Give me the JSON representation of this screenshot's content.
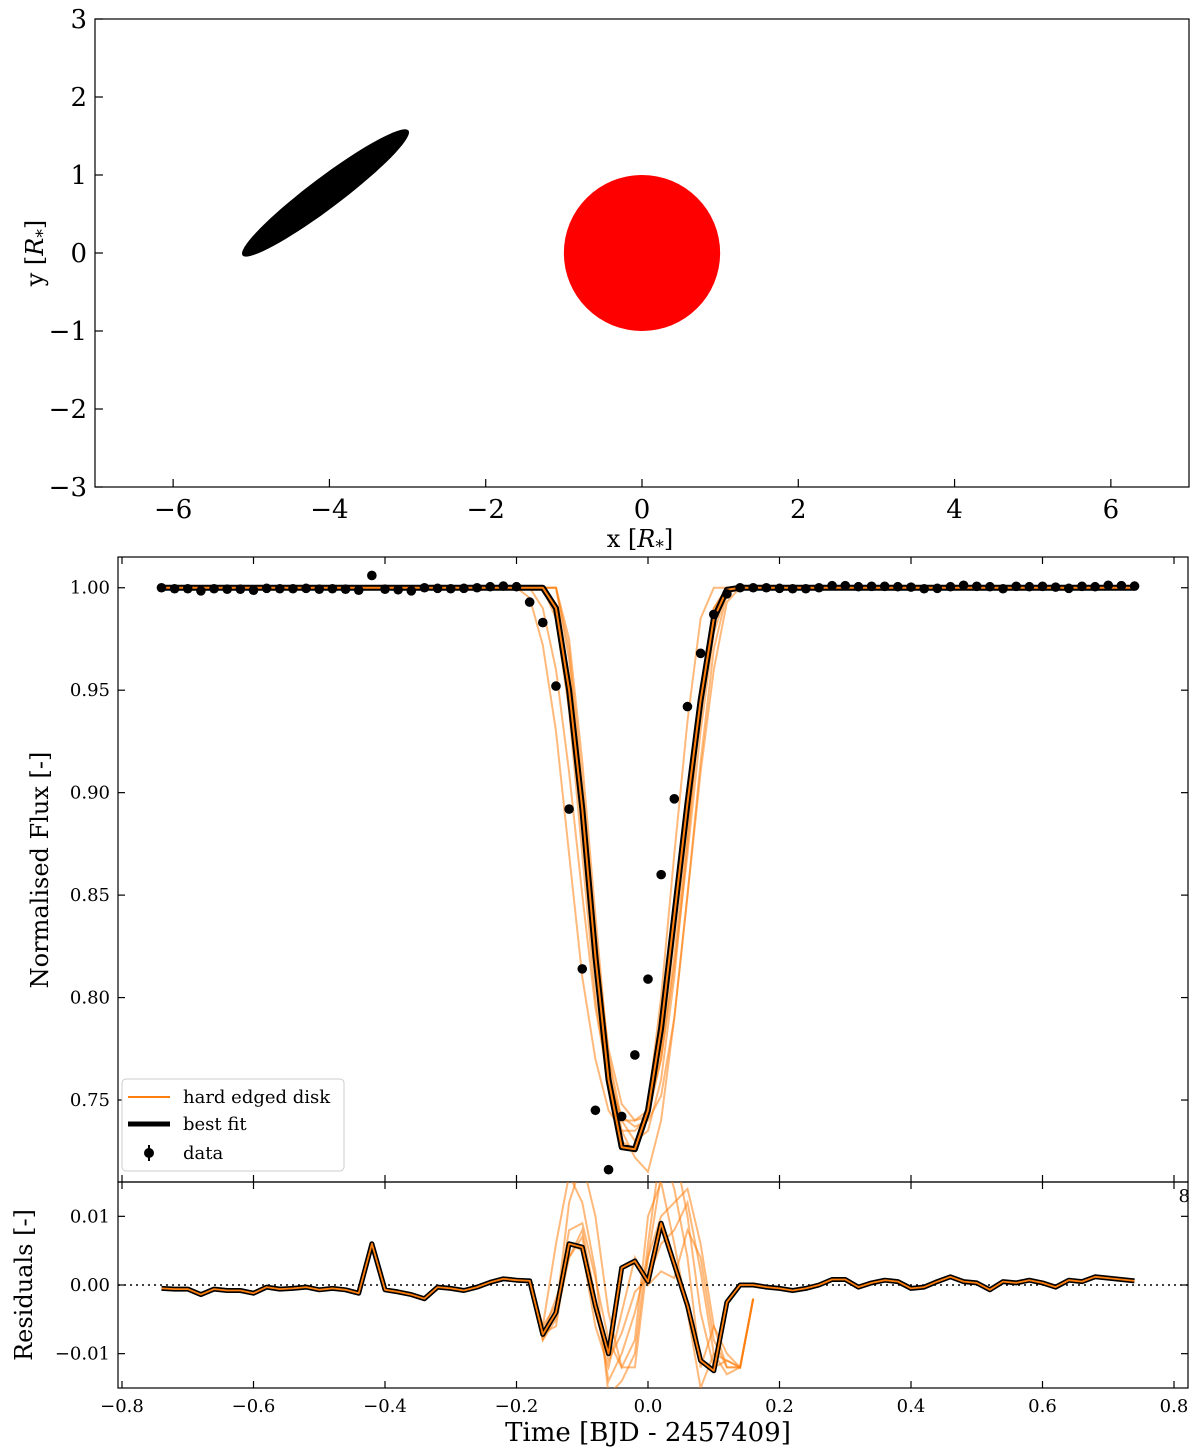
{
  "chart_data": [
    {
      "type": "scatter",
      "panel": "sky-projection",
      "title": "",
      "xlabel_prefix": "x [",
      "xlabel_sym": "R",
      "xlabel_sub": "*",
      "xlabel_suffix": "]",
      "ylabel_prefix": "y [",
      "ylabel_sym": "R",
      "ylabel_sub": "*",
      "ylabel_suffix": "]",
      "xlim": [
        -7,
        7
      ],
      "ylim": [
        -3,
        3
      ],
      "xticks": [
        -6,
        -4,
        -2,
        0,
        2,
        4,
        6
      ],
      "yticks": [
        -3,
        -2,
        -1,
        0,
        1,
        2,
        3
      ],
      "xtick_labels": [
        "−6",
        "−4",
        "−2",
        "0",
        "2",
        "4",
        "6"
      ],
      "ytick_labels": [
        "−3",
        "−2",
        "−1",
        "0",
        "1",
        "2",
        "3"
      ],
      "shapes": [
        {
          "name": "disk",
          "kind": "ellipse",
          "center": [
            -4.05,
            0.77
          ],
          "semi_major": 1.33,
          "semi_minor": 0.2,
          "angle_deg": 37,
          "color": "#000000"
        },
        {
          "name": "star",
          "kind": "circle",
          "center": [
            0,
            0
          ],
          "radius": 1.0,
          "color": "#ff0000"
        }
      ]
    },
    {
      "type": "line",
      "panel": "light-curve",
      "title": "",
      "xlabel": "",
      "ylabel": "Normalised Flux [-]",
      "xlim": [
        -0.8,
        0.85
      ],
      "ylim": [
        0.71,
        1.015
      ],
      "yticks": [
        0.75,
        0.8,
        0.85,
        0.9,
        0.95,
        1.0
      ],
      "ytick_labels": [
        "0.75",
        "0.80",
        "0.85",
        "0.90",
        "0.95",
        "1.00"
      ],
      "stray_label": "8",
      "legend": {
        "placement": "lower-left",
        "entries": [
          {
            "label": "hard edged disk",
            "style": "thin-orange-line",
            "color": "#ff7f0e"
          },
          {
            "label": "best fit",
            "style": "thick-black-line",
            "color": "#000000"
          },
          {
            "label": "data",
            "style": "errorbar-point",
            "color": "#000000"
          }
        ]
      },
      "data_x": [
        -0.74,
        -0.72,
        -0.7,
        -0.68,
        -0.66,
        -0.64,
        -0.62,
        -0.6,
        -0.58,
        -0.56,
        -0.54,
        -0.52,
        -0.5,
        -0.48,
        -0.46,
        -0.44,
        -0.42,
        -0.4,
        -0.38,
        -0.36,
        -0.34,
        -0.32,
        -0.3,
        -0.28,
        -0.26,
        -0.24,
        -0.22,
        -0.2,
        -0.18,
        -0.16,
        -0.14,
        -0.12,
        -0.1,
        -0.08,
        -0.06,
        -0.04,
        -0.02,
        0.0,
        0.02,
        0.04,
        0.06,
        0.08,
        0.1,
        0.12,
        0.14,
        0.16,
        0.18,
        0.2,
        0.22,
        0.24,
        0.26,
        0.28,
        0.3,
        0.32,
        0.34,
        0.36,
        0.38,
        0.4,
        0.42,
        0.44,
        0.46,
        0.48,
        0.5,
        0.52,
        0.54,
        0.56,
        0.58,
        0.6,
        0.62,
        0.64,
        0.66,
        0.68,
        0.7,
        0.72,
        0.74
      ],
      "data_y": [
        1.0,
        0.9995,
        0.9995,
        0.9985,
        0.9995,
        0.9993,
        0.9993,
        0.9988,
        0.9997,
        0.9995,
        0.9995,
        0.9997,
        0.9993,
        0.9995,
        0.9993,
        0.9988,
        1.006,
        0.9993,
        0.999,
        0.9985,
        1.0,
        0.9997,
        0.9995,
        0.9997,
        1.0,
        1.0005,
        1.0008,
        1.0005,
        0.993,
        0.983,
        0.952,
        0.892,
        0.814,
        0.745,
        0.716,
        0.742,
        0.772,
        0.809,
        0.86,
        0.897,
        0.942,
        0.968,
        0.987,
        0.997,
        1.0,
        1.0,
        1.0,
        0.9997,
        0.9995,
        0.9995,
        1.0,
        1.001,
        1.001,
        1.0005,
        1.0007,
        1.0007,
        1.0005,
        1.0003,
        0.9995,
        0.9997,
        1.0005,
        1.0012,
        1.0007,
        1.0005,
        0.9995,
        1.0007,
        1.0005,
        1.0007,
        1.0003,
        0.9997,
        1.0007,
        1.0005,
        1.0012,
        1.001,
        1.0008
      ],
      "best_fit_x": [
        -0.74,
        -0.2,
        -0.18,
        -0.16,
        -0.14,
        -0.12,
        -0.1,
        -0.08,
        -0.06,
        -0.04,
        -0.02,
        0.0,
        0.02,
        0.04,
        0.06,
        0.08,
        0.1,
        0.12,
        0.14,
        0.16,
        0.74
      ],
      "best_fit_y": [
        1.0,
        1.0,
        1.0,
        1.0,
        0.99,
        0.95,
        0.892,
        0.82,
        0.76,
        0.727,
        0.726,
        0.745,
        0.785,
        0.84,
        0.895,
        0.945,
        0.985,
        0.999,
        1.0,
        1.0,
        1.0
      ],
      "sample_curves": [
        {
          "x": [
            -0.74,
            -0.2,
            -0.18,
            -0.16,
            -0.14,
            -0.12,
            -0.1,
            -0.08,
            -0.06,
            -0.04,
            -0.02,
            0.0,
            0.02,
            0.04,
            0.06,
            0.08,
            0.1,
            0.12,
            0.14,
            0.74
          ],
          "y": [
            1.0,
            1.0,
            0.995,
            0.972,
            0.93,
            0.87,
            0.81,
            0.77,
            0.745,
            0.735,
            0.735,
            0.742,
            0.77,
            0.82,
            0.88,
            0.94,
            0.985,
            1.0,
            1.0,
            1.0
          ]
        },
        {
          "x": [
            -0.74,
            -0.18,
            -0.16,
            -0.14,
            -0.12,
            -0.1,
            -0.08,
            -0.06,
            -0.04,
            -0.02,
            0.0,
            0.02,
            0.04,
            0.06,
            0.08,
            0.1,
            0.12,
            0.14,
            0.74
          ],
          "y": [
            1.0,
            1.0,
            0.99,
            0.96,
            0.91,
            0.85,
            0.795,
            0.76,
            0.742,
            0.737,
            0.74,
            0.752,
            0.79,
            0.85,
            0.915,
            0.97,
            0.997,
            1.0,
            1.0
          ]
        },
        {
          "x": [
            -0.74,
            -0.16,
            -0.14,
            -0.12,
            -0.1,
            -0.08,
            -0.06,
            -0.04,
            -0.02,
            0.0,
            0.02,
            0.04,
            0.06,
            0.08,
            0.1,
            0.74
          ],
          "y": [
            1.0,
            1.0,
            0.985,
            0.94,
            0.87,
            0.8,
            0.755,
            0.73,
            0.725,
            0.748,
            0.8,
            0.87,
            0.935,
            0.985,
            1.0,
            1.0
          ]
        },
        {
          "x": [
            -0.74,
            -0.16,
            -0.14,
            -0.12,
            -0.1,
            -0.08,
            -0.06,
            -0.04,
            -0.02,
            0.0,
            0.02,
            0.04,
            0.06,
            0.08,
            0.1,
            0.12,
            0.74
          ],
          "y": [
            1.0,
            1.0,
            0.992,
            0.95,
            0.89,
            0.815,
            0.76,
            0.74,
            0.74,
            0.742,
            0.775,
            0.83,
            0.89,
            0.95,
            0.99,
            1.0,
            1.0
          ]
        },
        {
          "x": [
            -0.74,
            -0.14,
            -0.12,
            -0.1,
            -0.08,
            -0.06,
            -0.04,
            -0.02,
            0.0,
            0.02,
            0.04,
            0.06,
            0.08,
            0.1,
            0.12,
            0.14,
            0.74
          ],
          "y": [
            1.0,
            1.0,
            0.975,
            0.915,
            0.84,
            0.77,
            0.735,
            0.722,
            0.715,
            0.74,
            0.79,
            0.85,
            0.91,
            0.96,
            0.993,
            1.0,
            1.0
          ]
        },
        {
          "x": [
            -0.74,
            -0.14,
            -0.12,
            -0.1,
            -0.08,
            -0.06,
            -0.04,
            -0.02,
            0.0,
            0.02,
            0.04,
            0.06,
            0.08,
            0.1,
            0.12,
            0.14,
            0.74
          ],
          "y": [
            1.0,
            1.0,
            0.965,
            0.9,
            0.825,
            0.775,
            0.748,
            0.74,
            0.745,
            0.77,
            0.815,
            0.87,
            0.93,
            0.978,
            0.998,
            1.0,
            1.0
          ]
        },
        {
          "x": [
            -0.74,
            -0.14,
            -0.12,
            -0.1,
            -0.08,
            -0.06,
            -0.04,
            -0.02,
            0.0,
            0.02,
            0.04,
            0.06,
            0.08,
            0.1,
            0.12,
            0.74
          ],
          "y": [
            1.0,
            1.0,
            0.97,
            0.905,
            0.832,
            0.772,
            0.74,
            0.73,
            0.735,
            0.76,
            0.81,
            0.875,
            0.945,
            0.99,
            1.0,
            1.0
          ]
        }
      ]
    },
    {
      "type": "line",
      "panel": "residuals",
      "title": "",
      "xlabel": "Time [BJD - 2457409]",
      "ylabel": "Residuals [-]",
      "xlim": [
        -0.82,
        0.82
      ],
      "ylim": [
        -0.015,
        0.015
      ],
      "xticks": [
        -0.8,
        -0.6,
        -0.4,
        -0.2,
        0.0,
        0.2,
        0.4,
        0.6,
        0.8
      ],
      "xtick_labels": [
        "−0.8",
        "−0.6",
        "−0.4",
        "−0.2",
        "0.0",
        "0.2",
        "0.4",
        "0.6",
        "0.8"
      ],
      "yticks": [
        -0.01,
        0.0,
        0.01
      ],
      "ytick_labels": [
        "−0.01",
        "0.00",
        "0.01"
      ],
      "zero_line": "dotted",
      "residual_x": [
        -0.74,
        -0.72,
        -0.7,
        -0.68,
        -0.66,
        -0.64,
        -0.62,
        -0.6,
        -0.58,
        -0.56,
        -0.54,
        -0.52,
        -0.5,
        -0.48,
        -0.46,
        -0.44,
        -0.42,
        -0.4,
        -0.38,
        -0.36,
        -0.34,
        -0.32,
        -0.3,
        -0.28,
        -0.26,
        -0.24,
        -0.22,
        -0.2,
        -0.18,
        -0.16,
        -0.14,
        -0.12,
        -0.1,
        -0.08,
        -0.06,
        -0.04,
        -0.02,
        0.0,
        0.02,
        0.04,
        0.06,
        0.08,
        0.1,
        0.12,
        0.14,
        0.16,
        0.18,
        0.2,
        0.22,
        0.24,
        0.26,
        0.28,
        0.3,
        0.32,
        0.34,
        0.36,
        0.38,
        0.4,
        0.42,
        0.44,
        0.46,
        0.48,
        0.5,
        0.52,
        0.54,
        0.56,
        0.58,
        0.6,
        0.62,
        0.64,
        0.66,
        0.68,
        0.7,
        0.72,
        0.74
      ],
      "residual_y": [
        -0.0005,
        -0.0006,
        -0.0006,
        -0.0014,
        -0.0006,
        -0.0008,
        -0.0008,
        -0.0012,
        -0.0003,
        -0.0006,
        -0.0005,
        -0.0003,
        -0.0007,
        -0.0005,
        -0.0007,
        -0.0012,
        0.006,
        -0.0007,
        -0.001,
        -0.0014,
        -0.002,
        -0.0003,
        -0.0005,
        -0.0008,
        -0.0003,
        0.0004,
        0.0009,
        0.0007,
        0.0006,
        -0.0072,
        -0.004,
        0.006,
        0.0055,
        -0.003,
        -0.01,
        0.0025,
        0.0035,
        0.0005,
        0.009,
        0.003,
        -0.003,
        -0.011,
        -0.0125,
        -0.0025,
        0.0,
        0.0,
        -0.0003,
        -0.0005,
        -0.0008,
        -0.0005,
        0.0,
        0.0008,
        0.0008,
        -0.0003,
        0.0003,
        0.0007,
        0.0005,
        -0.0005,
        -0.0003,
        0.0005,
        0.0012,
        0.0005,
        0.0003,
        -0.0007,
        0.0005,
        0.0003,
        0.0007,
        0.0003,
        -0.0003,
        0.0007,
        0.0005,
        0.0012,
        0.001,
        0.0008,
        0.0006
      ],
      "residual_samples": [
        {
          "x": [
            -0.18,
            -0.16,
            -0.14,
            -0.12,
            -0.1,
            -0.08,
            -0.06,
            -0.04,
            -0.02,
            0.0,
            0.02,
            0.04,
            0.06,
            0.08,
            0.1,
            0.12,
            0.14,
            0.16
          ],
          "y": [
            0.0006,
            -0.006,
            0.006,
            0.016,
            0.012,
            0.002,
            -0.016,
            -0.014,
            -0.01,
            0.006,
            0.02,
            0.014,
            0.004,
            -0.012,
            -0.006,
            -0.01,
            -0.012,
            -0.002
          ]
        },
        {
          "x": [
            -0.18,
            -0.16,
            -0.14,
            -0.12,
            -0.1,
            -0.08,
            -0.06,
            -0.04,
            -0.02,
            0.0,
            0.02,
            0.04,
            0.06,
            0.08,
            0.1,
            0.12,
            0.14,
            0.16
          ],
          "y": [
            0.0006,
            -0.008,
            -0.004,
            0.012,
            0.018,
            0.01,
            -0.004,
            -0.012,
            -0.012,
            0.004,
            0.016,
            0.02,
            0.01,
            -0.004,
            -0.012,
            -0.011,
            -0.012,
            -0.002
          ]
        },
        {
          "x": [
            -0.18,
            -0.16,
            -0.14,
            -0.12,
            -0.1,
            -0.08,
            -0.06,
            -0.04,
            -0.02,
            0.0,
            0.02,
            0.04,
            0.06,
            0.08,
            0.1,
            0.12,
            0.14,
            0.16
          ],
          "y": [
            0.0006,
            -0.007,
            -0.002,
            0.004,
            0.007,
            -0.004,
            -0.011,
            -0.007,
            -0.001,
            0.001,
            0.006,
            0.008,
            0.012,
            0.002,
            -0.01,
            -0.013,
            -0.012,
            -0.002
          ]
        },
        {
          "x": [
            -0.18,
            -0.16,
            -0.14,
            -0.12,
            -0.1,
            -0.08,
            -0.06,
            -0.04,
            -0.02,
            0.0,
            0.02,
            0.04,
            0.06,
            0.08,
            0.1,
            0.12,
            0.14,
            0.16
          ],
          "y": [
            0.0006,
            -0.007,
            -0.006,
            0.006,
            0.005,
            -0.006,
            -0.012,
            -0.004,
            0.004,
            0.0,
            0.002,
            0.001,
            0.008,
            0.004,
            -0.008,
            -0.012,
            -0.012,
            -0.002
          ]
        },
        {
          "x": [
            -0.18,
            -0.16,
            -0.14,
            -0.12,
            -0.1,
            -0.08,
            -0.06,
            -0.04,
            -0.02,
            0.0,
            0.02,
            0.04,
            0.06,
            0.08,
            0.1,
            0.12,
            0.14,
            0.16
          ],
          "y": [
            0.0006,
            -0.006,
            -0.003,
            0.008,
            0.009,
            0.001,
            -0.008,
            -0.012,
            -0.008,
            0.01,
            0.015,
            0.006,
            -0.004,
            -0.015,
            -0.01,
            -0.011,
            -0.012,
            -0.002
          ]
        },
        {
          "x": [
            -0.18,
            -0.16,
            -0.14,
            -0.12,
            -0.1,
            -0.08,
            -0.06,
            -0.04,
            -0.02,
            0.0,
            0.02,
            0.04,
            0.06,
            0.08,
            0.1,
            0.12,
            0.14,
            0.16
          ],
          "y": [
            0.0006,
            -0.008,
            -0.005,
            0.004,
            0.008,
            -0.002,
            -0.014,
            -0.01,
            -0.004,
            0.004,
            0.01,
            0.012,
            0.014,
            0.006,
            -0.006,
            -0.012,
            -0.012,
            -0.002
          ]
        }
      ]
    }
  ]
}
